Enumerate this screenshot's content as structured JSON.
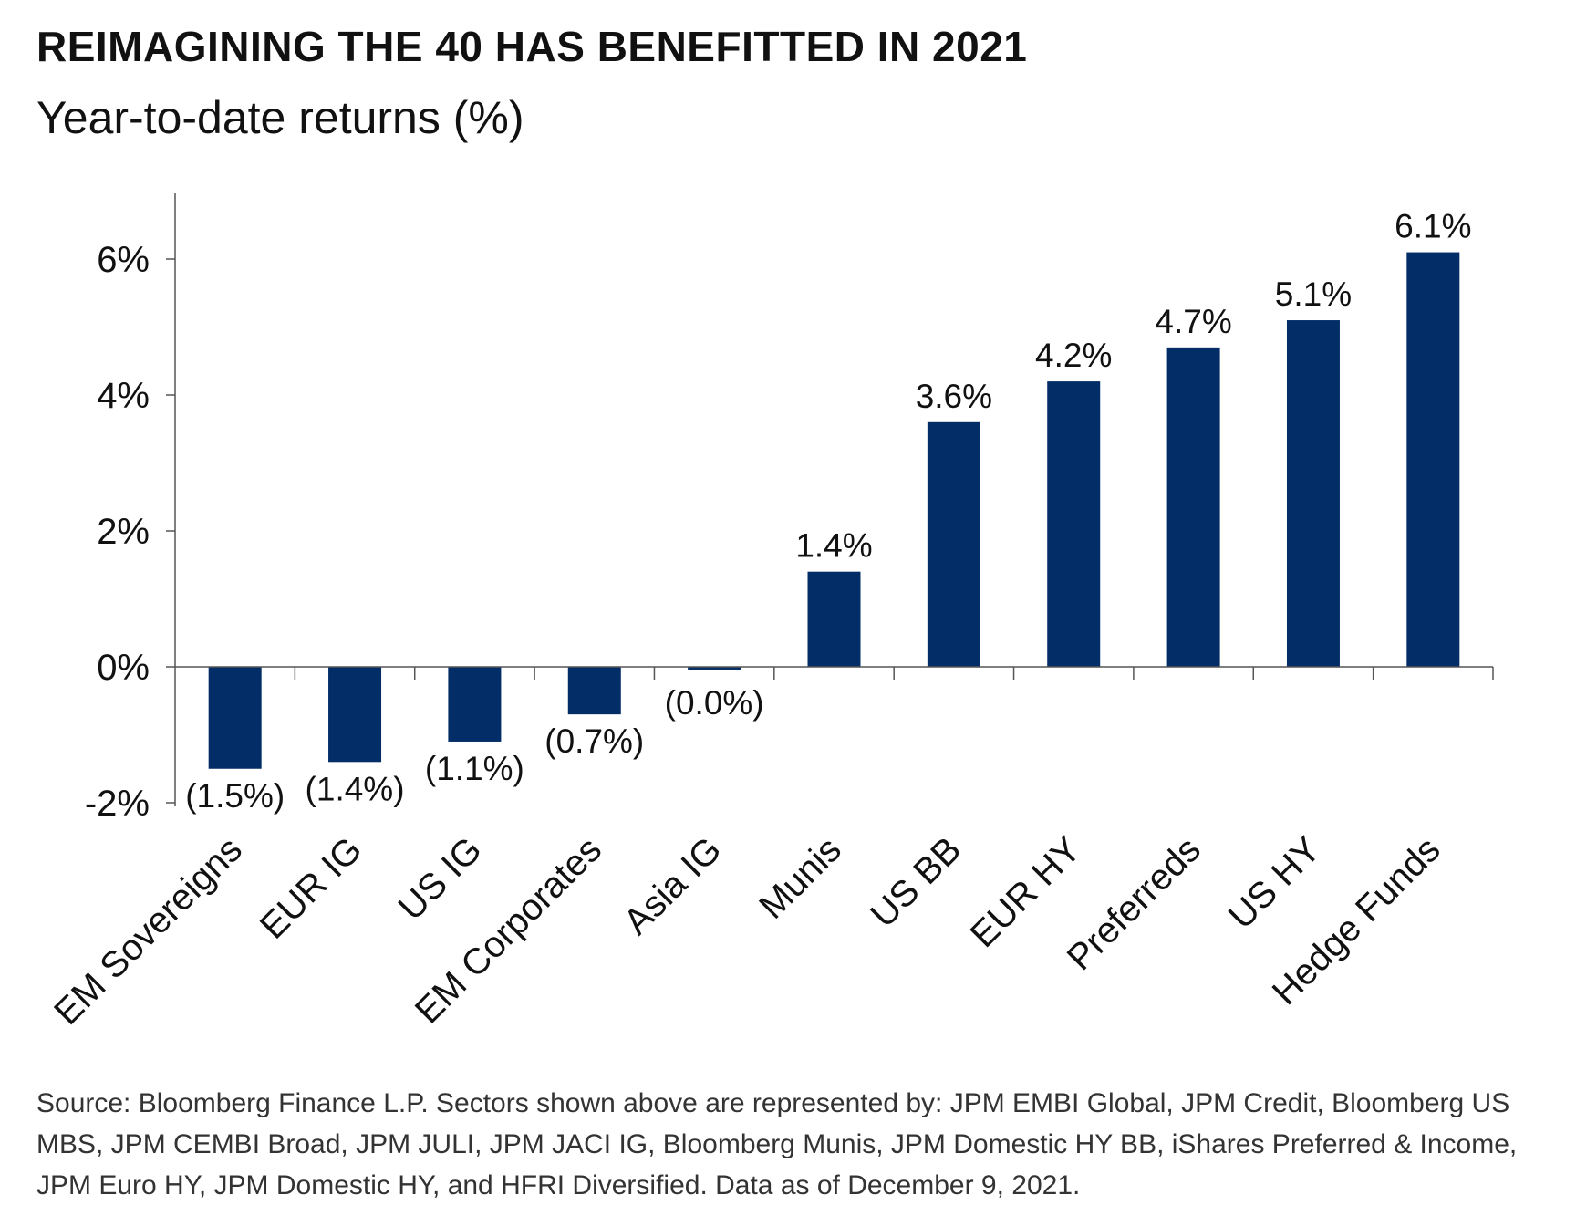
{
  "header": {
    "title": "REIMAGINING THE 40 HAS BENEFITTED IN 2021",
    "subtitle": "Year-to-date returns (%)"
  },
  "footer": {
    "source": "Source: Bloomberg Finance L.P. Sectors shown above are represented by: JPM EMBI Global, JPM Credit, Bloomberg US MBS, JPM CEMBI Broad, JPM JULI, JPM JACI IG, Bloomberg Munis, JPM Domestic HY BB, iShares Preferred & Income, JPM Euro HY, JPM Domestic HY, and HFRI Diversified. Data as of December 9, 2021."
  },
  "chart_data": {
    "type": "bar",
    "title": "REIMAGINING THE 40 HAS BENEFITTED IN 2021",
    "subtitle": "Year-to-date returns (%)",
    "categories": [
      "EM Sovereigns",
      "EUR IG",
      "US IG",
      "EM Corporates",
      "Asia IG",
      "Munis",
      "US BB",
      "EUR HY",
      "Preferreds",
      "US HY",
      "Hedge Funds"
    ],
    "values": [
      -1.5,
      -1.4,
      -1.1,
      -0.7,
      -0.04,
      1.4,
      3.6,
      4.2,
      4.7,
      5.1,
      6.1
    ],
    "data_labels": [
      "(1.5%)",
      "(1.4%)",
      "(1.1%)",
      "(0.7%)",
      "(0.0%)",
      "1.4%",
      "3.6%",
      "4.2%",
      "4.7%",
      "5.1%",
      "6.1%"
    ],
    "yticks": [
      -2,
      0,
      2,
      4,
      6
    ],
    "ytick_labels": [
      "-2%",
      "0%",
      "2%",
      "4%",
      "6%"
    ],
    "ylim": [
      -2.1,
      7.0
    ],
    "xlabel": "",
    "ylabel": "",
    "grid": false,
    "legend": "none",
    "bar_color": "#022d66"
  }
}
